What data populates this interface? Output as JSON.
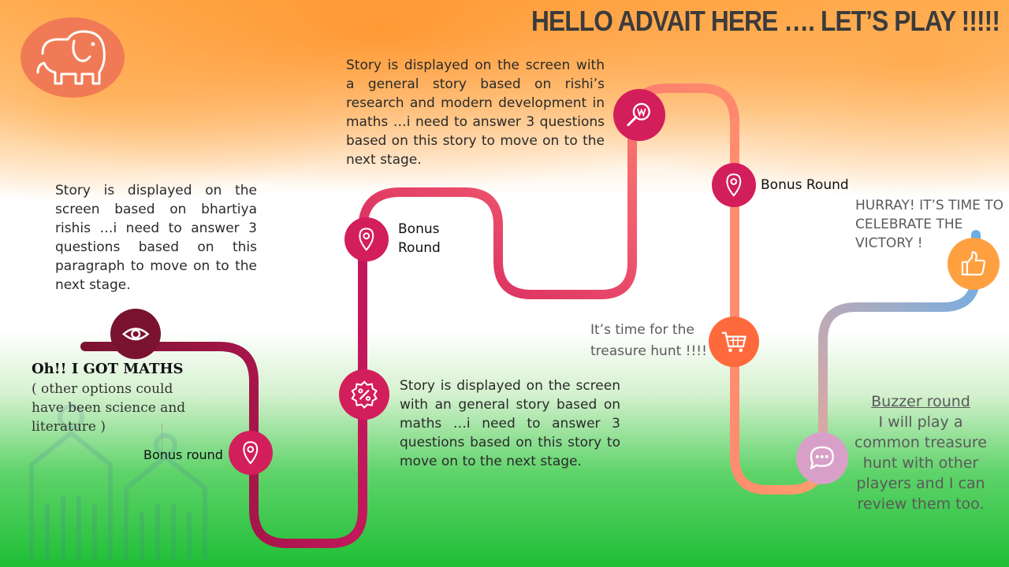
{
  "header": {
    "title": "HELLO ADVAIT HERE …. LET’S PLAY !!!!!"
  },
  "logo": {
    "icon": "elephant-icon"
  },
  "colors": {
    "road_dark": "#c2185b",
    "road_mid": "#f05a6e",
    "road_peach": "#ffa06e",
    "road_blue": "#6aaee8",
    "node_pink": "#d31e5c",
    "node_maroon": "#7a1330",
    "node_orange": "#ff6a3c",
    "node_lilac": "#d8a0c8",
    "logo": "#f07a55"
  },
  "stages": {
    "start": {
      "icon": "eye-icon",
      "text": "Story is displayed on the screen based on bhartiya rishis …i need to answer 3 questions based on this paragraph to move on to the next stage."
    },
    "choice": {
      "title": "Oh!! I GOT MATHS",
      "text": "( other options could have been science and literature )"
    },
    "bonus1": {
      "icon": "location-pin-icon",
      "label": "Bonus round"
    },
    "maths": {
      "icon": "percent-badge-icon",
      "text": "Story is displayed on the screen with an general story based on maths …i need to answer 3 questions based on this story to move on to the next stage."
    },
    "bonus2": {
      "icon": "location-pin-icon",
      "label": "Bonus Round"
    },
    "research": {
      "icon": "search-word-icon",
      "text": "Story is displayed on the screen with a general story based on rishi’s research and modern development in maths   …i need to answer 3 questions based on this story to move on to the next stage."
    },
    "bonus3": {
      "icon": "location-pin-icon",
      "label": "Bonus Round"
    },
    "treasure": {
      "icon": "shopping-cart-icon",
      "text": "It’s time for the treasure hunt !!!!"
    },
    "buzzer": {
      "icon": "chat-bubble-icon",
      "title": "Buzzer round",
      "text": "I will play a common treasure hunt with other players and I can review them too."
    },
    "victory": {
      "icon": "thumbs-up-icon",
      "text": "HURRAY! IT’S TIME TO CELEBRATE THE VICTORY !"
    }
  }
}
